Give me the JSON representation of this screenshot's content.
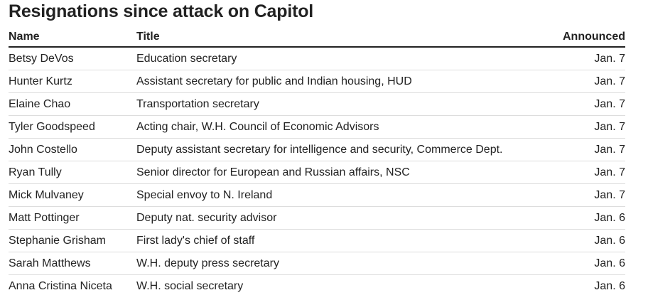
{
  "header": {
    "title": "Resignations since attack on Capitol"
  },
  "table": {
    "columns": [
      "Name",
      "Title",
      "Announced"
    ],
    "rows": [
      [
        "Betsy DeVos",
        "Education secretary",
        "Jan. 7"
      ],
      [
        "Hunter Kurtz",
        "Assistant secretary for public and Indian housing, HUD",
        "Jan. 7"
      ],
      [
        "Elaine Chao",
        "Transportation secretary",
        "Jan. 7"
      ],
      [
        "Tyler Goodspeed",
        "Acting chair, W.H. Council of Economic Advisors",
        "Jan. 7"
      ],
      [
        "John Costello",
        "Deputy assistant secretary for intelligence and security, Commerce Dept.",
        "Jan. 7"
      ],
      [
        "Ryan Tully",
        "Senior director for European and Russian affairs, NSC",
        "Jan. 7"
      ],
      [
        "Mick Mulvaney",
        "Special envoy to N. Ireland",
        "Jan. 7"
      ],
      [
        "Matt Pottinger",
        "Deputy nat. security advisor",
        "Jan. 6"
      ],
      [
        "Stephanie Grisham",
        "First lady's chief of staff",
        "Jan. 6"
      ],
      [
        "Sarah Matthews",
        "W.H. deputy press secretary",
        "Jan. 6"
      ],
      [
        "Anna Cristina Niceta",
        "W.H. social secretary",
        "Jan. 6"
      ]
    ]
  }
}
